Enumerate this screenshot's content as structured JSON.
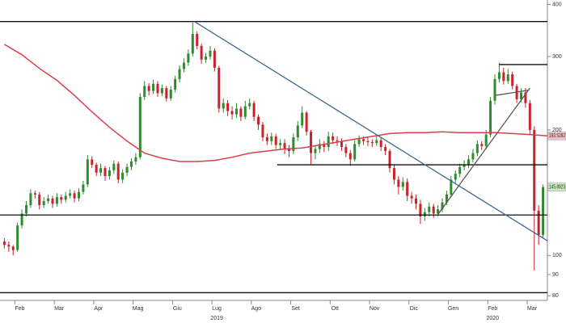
{
  "chart_data": {
    "type": "candlestick",
    "log_y": true,
    "xlim": [
      -1,
      124
    ],
    "ylim": [
      78,
      410
    ],
    "yticks": [
      400,
      300,
      200,
      100,
      90,
      80
    ],
    "xticks": [
      {
        "value": 3.5,
        "label": "Feb"
      },
      {
        "value": 12.5,
        "label": "Mar"
      },
      {
        "value": 21.5,
        "label": "Apr"
      },
      {
        "value": 30.5,
        "label": "Mag"
      },
      {
        "value": 39.5,
        "label": "Giu"
      },
      {
        "value": 48.5,
        "label": "Lug"
      },
      {
        "value": 57.5,
        "label": "Ago"
      },
      {
        "value": 66.5,
        "label": "Set"
      },
      {
        "value": 75.5,
        "label": "Ott"
      },
      {
        "value": 84.5,
        "label": "Nov"
      },
      {
        "value": 93.5,
        "label": "Dic"
      },
      {
        "value": 102.5,
        "label": "Gen"
      },
      {
        "value": 111.5,
        "label": "Feb"
      },
      {
        "value": 120.5,
        "label": "Mar"
      }
    ],
    "year_labels": [
      {
        "value": 48.5,
        "label": "2019"
      },
      {
        "value": 111.5,
        "label": "2020"
      }
    ],
    "up_color": "#2e8b2e",
    "down_color": "#c8232c",
    "open": [
      108,
      106,
      105,
      103,
      118,
      126,
      132,
      141,
      140,
      132,
      135,
      137,
      133,
      138,
      136,
      139,
      141,
      137,
      142,
      148,
      170,
      165,
      158,
      162,
      155,
      160,
      166,
      152,
      158,
      163,
      168,
      172,
      240,
      255,
      248,
      258,
      245,
      252,
      238,
      250,
      265,
      280,
      290,
      305,
      340,
      318,
      295,
      300,
      310,
      282,
      225,
      232,
      222,
      218,
      225,
      215,
      228,
      232,
      215,
      206,
      192,
      188,
      193,
      184,
      186,
      180,
      178,
      192,
      205,
      220,
      198,
      176,
      180,
      185,
      182,
      193,
      189,
      188,
      182,
      176,
      170,
      185,
      190,
      188,
      187,
      186,
      189,
      182,
      178,
      162,
      152,
      146,
      150,
      139,
      137,
      133,
      124,
      127,
      131,
      126,
      129,
      134,
      140,
      152,
      157,
      163,
      165,
      170,
      176,
      185,
      183,
      195,
      235,
      265,
      275,
      262,
      272,
      255,
      237,
      246,
      232,
      200,
      128,
      112
    ],
    "high": [
      110,
      108,
      106,
      120,
      129,
      135,
      144,
      143,
      142,
      138,
      140,
      139,
      141,
      140,
      142,
      144,
      143,
      145,
      151,
      174,
      173,
      167,
      166,
      164,
      163,
      169,
      168,
      161,
      166,
      171,
      176,
      245,
      262,
      259,
      264,
      262,
      257,
      255,
      255,
      270,
      286,
      297,
      312,
      362,
      345,
      322,
      306,
      318,
      314,
      285,
      238,
      236,
      228,
      232,
      228,
      235,
      238,
      235,
      218,
      209,
      196,
      197,
      196,
      190,
      190,
      184,
      196,
      210,
      228,
      222,
      200,
      184,
      190,
      188,
      198,
      197,
      193,
      191,
      185,
      179,
      189,
      194,
      193,
      192,
      190,
      193,
      192,
      185,
      180,
      165,
      155,
      154,
      153,
      142,
      140,
      136,
      130,
      134,
      133,
      132,
      137,
      143,
      155,
      160,
      166,
      169,
      174,
      180,
      189,
      188,
      200,
      240,
      272,
      290,
      282,
      280,
      276,
      258,
      252,
      252,
      236,
      204,
      132,
      148
    ],
    "low": [
      104,
      102,
      100,
      102,
      116,
      124,
      130,
      137,
      129,
      130,
      133,
      130,
      131,
      133,
      134,
      137,
      134,
      135,
      140,
      146,
      162,
      155,
      155,
      151,
      152,
      157,
      149,
      149,
      155,
      160,
      165,
      170,
      236,
      242,
      244,
      240,
      241,
      234,
      235,
      246,
      260,
      275,
      285,
      300,
      312,
      288,
      290,
      295,
      276,
      220,
      220,
      216,
      212,
      214,
      210,
      212,
      224,
      210,
      200,
      188,
      184,
      184,
      180,
      180,
      175,
      172,
      175,
      188,
      202,
      194,
      165,
      170,
      176,
      177,
      178,
      185,
      183,
      178,
      172,
      164,
      168,
      182,
      184,
      183,
      182,
      183,
      178,
      174,
      158,
      148,
      140,
      143,
      135,
      133,
      129,
      119,
      121,
      124,
      123,
      124,
      127,
      132,
      138,
      149,
      154,
      160,
      162,
      167,
      173,
      179,
      180,
      192,
      230,
      260,
      257,
      258,
      250,
      232,
      233,
      226,
      195,
      92,
      106,
      110
    ],
    "close": [
      106,
      105,
      103,
      118,
      126,
      132,
      141,
      140,
      132,
      135,
      137,
      133,
      138,
      136,
      139,
      141,
      137,
      142,
      148,
      170,
      165,
      158,
      162,
      155,
      160,
      166,
      152,
      158,
      163,
      168,
      172,
      240,
      255,
      248,
      258,
      245,
      252,
      238,
      250,
      265,
      280,
      290,
      305,
      340,
      318,
      295,
      300,
      310,
      282,
      225,
      232,
      222,
      218,
      225,
      215,
      228,
      232,
      215,
      206,
      192,
      188,
      193,
      184,
      186,
      180,
      178,
      192,
      205,
      220,
      198,
      176,
      180,
      185,
      182,
      193,
      189,
      188,
      182,
      176,
      170,
      185,
      190,
      188,
      187,
      186,
      189,
      182,
      178,
      162,
      152,
      146,
      150,
      139,
      137,
      133,
      124,
      127,
      131,
      126,
      129,
      134,
      140,
      152,
      157,
      163,
      165,
      170,
      176,
      185,
      183,
      195,
      235,
      265,
      275,
      262,
      272,
      255,
      237,
      246,
      232,
      200,
      128,
      112,
      145.8923
    ],
    "moving_average": {
      "color": "#d9404a",
      "x": [
        0,
        4,
        8,
        12,
        16,
        20,
        24,
        28,
        32,
        36,
        40,
        44,
        48,
        52,
        56,
        60,
        64,
        68,
        72,
        76,
        80,
        84,
        88,
        92,
        96,
        100,
        104,
        108,
        112,
        116,
        120,
        124
      ],
      "values": [
        321,
        303,
        281,
        263,
        242,
        221,
        203,
        188,
        176,
        171,
        168,
        168,
        169,
        172,
        176,
        178,
        180,
        181,
        184,
        187,
        190,
        193,
        196,
        197,
        197,
        198,
        197,
        197,
        197,
        196,
        195,
        193.5282
      ]
    },
    "lines": [
      {
        "color": "#111111",
        "x": [
          -1,
          124
        ],
        "values": [
          364,
          364
        ]
      },
      {
        "color": "#111111",
        "x": [
          -1,
          124
        ],
        "values": [
          125,
          125
        ]
      },
      {
        "color": "#111111",
        "x": [
          -1,
          124
        ],
        "values": [
          81.4,
          81.4
        ]
      },
      {
        "color": "#111111",
        "x": [
          62.3,
          124
        ],
        "values": [
          165,
          165
        ]
      },
      {
        "color": "#111111",
        "x": [
          113,
          124
        ],
        "values": [
          287,
          287
        ]
      },
      {
        "color": "#3d6690",
        "x": [
          43.4,
          124
        ],
        "values": [
          364,
          108.4
        ]
      },
      {
        "color": "#555555",
        "x": [
          98.9,
          120
        ],
        "values": [
          125,
          252
        ]
      },
      {
        "color": "#555555",
        "x": [
          112.1,
          119.6
        ],
        "values": [
          242,
          249
        ]
      }
    ]
  }
}
